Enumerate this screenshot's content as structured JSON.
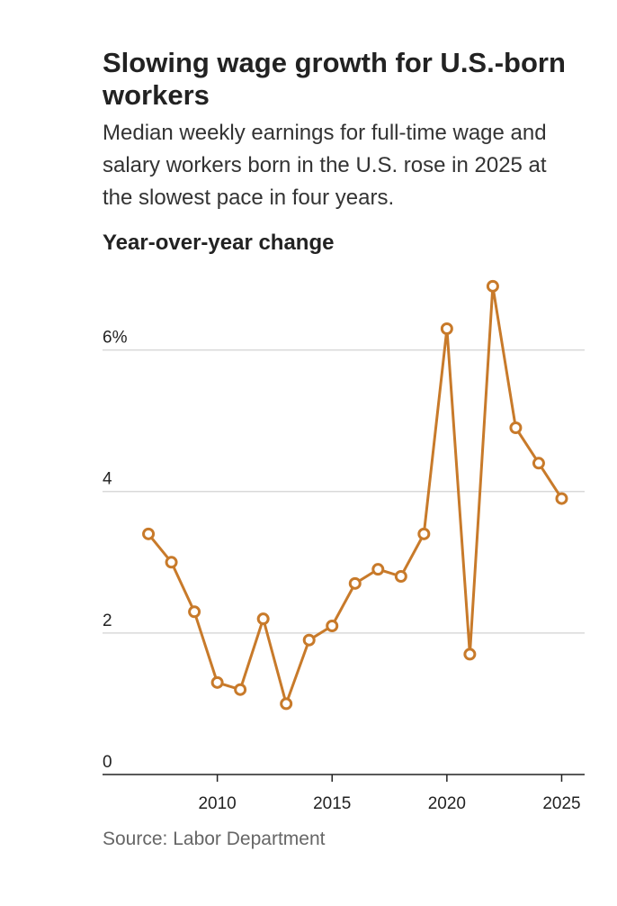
{
  "header": {
    "title": "Slowing wage growth for U.S.-born workers",
    "subtitle": "Median weekly earnings for full-time wage and salary workers born in the U.S. rose in 2025 at the slowest pace in four years."
  },
  "footer": {
    "source": "Source: Labor Department"
  },
  "chart_data": {
    "type": "line",
    "title": "Slowing wage growth for U.S.-born workers",
    "subtitle": "Median weekly earnings for full-time wage and salary workers born in the U.S. rose in 2025 at the slowest pace in four years.",
    "panel_label": "Year-over-year change",
    "xlabel": "",
    "ylabel": "",
    "x": [
      2007,
      2008,
      2009,
      2010,
      2011,
      2012,
      2013,
      2014,
      2015,
      2016,
      2017,
      2018,
      2019,
      2020,
      2021,
      2022,
      2023,
      2024,
      2025
    ],
    "series": [
      {
        "values": [
          3.4,
          3.0,
          2.3,
          1.3,
          1.2,
          2.2,
          1.0,
          1.9,
          2.1,
          2.7,
          2.9,
          2.8,
          3.4,
          6.3,
          1.7,
          6.9,
          4.9,
          4.4,
          3.9
        ]
      }
    ],
    "xlim": [
      2005,
      2026
    ],
    "ylim": [
      0,
      7
    ],
    "x_ticks": [
      2010,
      2015,
      2020,
      2025
    ],
    "x_tick_labels": [
      "2010",
      "2015",
      "2020",
      "2025"
    ],
    "y_ticks": [
      0,
      2,
      4,
      6
    ],
    "y_tick_labels": [
      "0",
      "2",
      "4",
      "6%"
    ],
    "grid": true,
    "legend": "none",
    "colors": {
      "line": "#C87A2A",
      "marker_fill": "#ffffff",
      "grid": "#d9d9d9",
      "axis": "#222222"
    }
  }
}
